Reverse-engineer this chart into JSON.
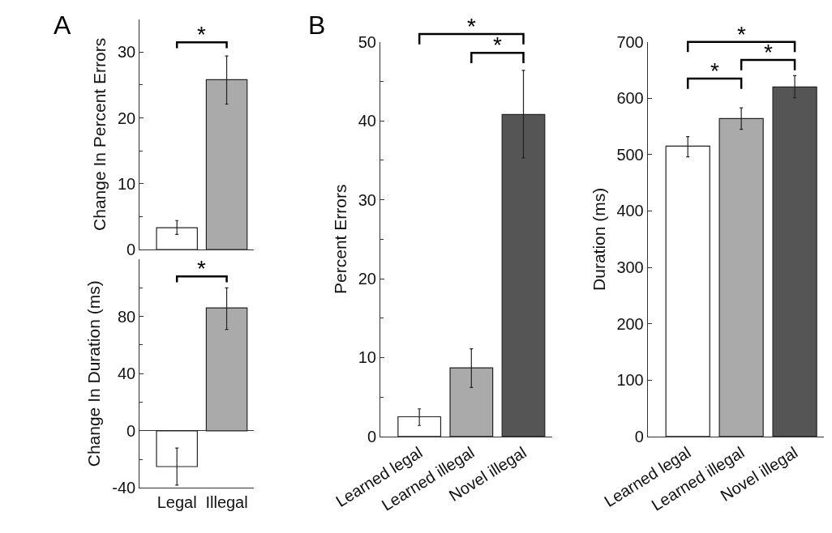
{
  "chart_data": [
    {
      "type": "bar",
      "title": "A",
      "ylabel": "Change In Percent Errors",
      "categories": [
        null,
        null
      ],
      "values": [
        3.3,
        25.8
      ],
      "colors": [
        "#ffffff",
        "#aaaaaa"
      ],
      "errors": [
        [
          2.3,
          4.4
        ],
        [
          22.1,
          29.4
        ]
      ],
      "ylim": [
        0,
        35
      ],
      "yticks": [
        0,
        {
          "value": 5,
          "label": null
        },
        10,
        {
          "value": 15,
          "label": null
        },
        20,
        {
          "value": 25,
          "label": null
        },
        30
      ],
      "tick_labels": "y",
      "annotations": [
        "*"
      ]
    },
    {
      "type": "bar",
      "ylabel": "Change In Duration (ms)",
      "categories": [
        "Legal",
        "Illegal"
      ],
      "values": [
        -25,
        86
      ],
      "colors": [
        "#ffffff",
        "#aaaaaa"
      ],
      "errors": [
        [
          -38,
          -12
        ],
        [
          71,
          100
        ]
      ],
      "ylim": [
        -40,
        120
      ],
      "yticks": [
        -40,
        {
          "value": -20,
          "label": null
        },
        0,
        {
          "value": 20,
          "label": null
        },
        40,
        {
          "value": 60,
          "label": null
        },
        80,
        {
          "value": 100,
          "label": null
        }
      ],
      "annotations": [
        "*"
      ]
    },
    {
      "type": "bar",
      "title": "B",
      "ylabel": "Percent Errors",
      "categories": [
        "Learned legal",
        "Learned illegal",
        "Novel illegal"
      ],
      "values": [
        2.5,
        8.7,
        40.8
      ],
      "colors": [
        "#ffffff",
        "#aaaaaa",
        "#555555"
      ],
      "errors": [
        [
          1.4,
          3.5
        ],
        [
          6.2,
          11.1
        ],
        [
          35.3,
          46.4
        ]
      ],
      "ylim": [
        0,
        50
      ],
      "yticks": [
        0,
        {
          "value": 5,
          "label": null
        },
        10,
        {
          "value": 15,
          "label": null
        },
        20,
        {
          "value": 25,
          "label": null
        },
        30,
        {
          "value": 35,
          "label": null
        },
        40,
        {
          "value": 45,
          "label": null
        },
        50
      ],
      "annotations": [
        "*",
        "*"
      ]
    },
    {
      "type": "bar",
      "ylabel": "Duration (ms)",
      "categories": [
        "Learned legal",
        "Learned illegal",
        "Novel illegal"
      ],
      "values": [
        515,
        564,
        620
      ],
      "colors": [
        "#ffffff",
        "#aaaaaa",
        "#555555"
      ],
      "errors": [
        [
          496,
          532
        ],
        [
          545,
          583
        ],
        [
          601,
          640
        ]
      ],
      "ylim": [
        0,
        700
      ],
      "yticks": [
        0,
        100,
        200,
        300,
        400,
        500,
        600,
        700
      ],
      "annotations": [
        "*",
        "*",
        "*"
      ]
    }
  ]
}
